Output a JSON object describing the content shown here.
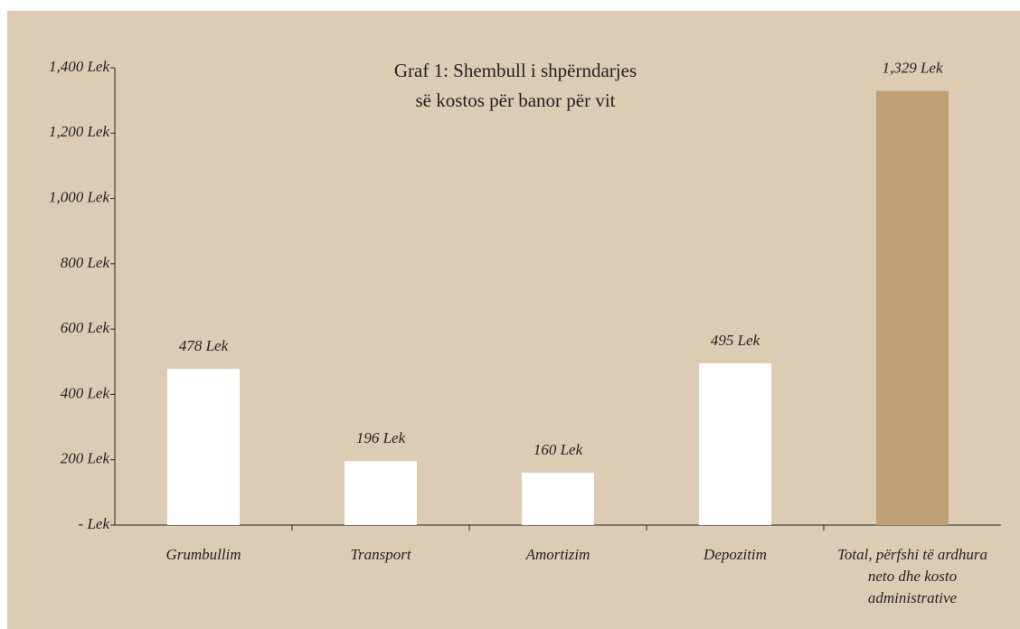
{
  "chart_data": {
    "type": "bar",
    "title": [
      "Graf 1: Shembull i shpërndarjes",
      "së kostos për banor për vit"
    ],
    "categories": [
      "Grumbullim",
      "Transport",
      "Amortizim",
      "Depozitim",
      "Total, përfshi të ardhura neto dhe kosto administrative"
    ],
    "values": [
      478,
      196,
      160,
      495,
      1329
    ],
    "value_labels": [
      "478 Lek",
      "196 Lek",
      "160 Lek",
      "495 Lek",
      "1,329 Lek"
    ],
    "colors": [
      "#ffffff",
      "#ffffff",
      "#ffffff",
      "#ffffff",
      "#c2a077"
    ],
    "ylim": [
      0,
      1400
    ],
    "yticks": [
      {
        "value": 0,
        "label": "- Lek"
      },
      {
        "value": 200,
        "label": "200 Lek"
      },
      {
        "value": 400,
        "label": "400 Lek"
      },
      {
        "value": 600,
        "label": "600 Lek"
      },
      {
        "value": 800,
        "label": "800 Lek"
      },
      {
        "value": 1000,
        "label": "1,000 Lek"
      },
      {
        "value": 1200,
        "label": "1,200 Lek"
      },
      {
        "value": 1400,
        "label": "1,400 Lek"
      }
    ],
    "grid": false
  }
}
